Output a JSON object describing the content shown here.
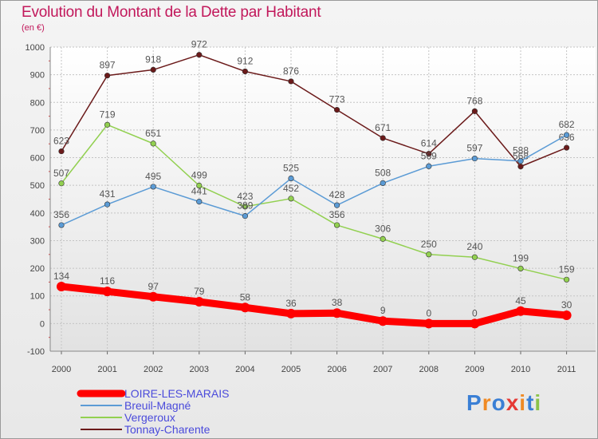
{
  "chart_data": {
    "type": "line",
    "title": "Evolution du Montant de la Dette par Habitant",
    "subtitle": "(en €)",
    "x": [
      "2000",
      "2001",
      "2002",
      "2003",
      "2004",
      "2005",
      "2006",
      "2007",
      "2008",
      "2009",
      "2010",
      "2011"
    ],
    "ylim": [
      -100,
      1000
    ],
    "yticks": [
      "-100",
      "0",
      "100",
      "200",
      "300",
      "400",
      "500",
      "600",
      "700",
      "800",
      "900",
      "1000"
    ],
    "grid": true,
    "legend_position": "bottom-left",
    "series": [
      {
        "name": "LOIRE-LES-MARAIS",
        "color": "#ff0000",
        "values": [
          134,
          116,
          97,
          79,
          58,
          36,
          38,
          9,
          0,
          0,
          45,
          30
        ],
        "labels": [
          "134",
          "116",
          "97",
          "79",
          "58",
          "36",
          "38",
          "9",
          "0",
          "0",
          "45",
          "30"
        ]
      },
      {
        "name": "Breuil-Magné",
        "color": "#5b9bd5",
        "values": [
          356,
          431,
          495,
          441,
          389,
          525,
          428,
          508,
          569,
          597,
          588,
          682
        ],
        "labels": [
          "356",
          "431",
          "495",
          "441",
          "389",
          "525",
          "428",
          "508",
          "569",
          "597",
          "588",
          "682"
        ]
      },
      {
        "name": "Vergeroux",
        "color": "#92d050",
        "values": [
          507,
          719,
          651,
          499,
          423,
          452,
          356,
          306,
          250,
          240,
          199,
          159
        ],
        "labels": [
          "507",
          "719",
          "651",
          "499",
          "423",
          "452",
          "356",
          "306",
          "250",
          "240",
          "199",
          "159"
        ]
      },
      {
        "name": "Tonnay-Charente",
        "color": "#6b1a1a",
        "values": [
          623,
          897,
          918,
          972,
          912,
          876,
          773,
          671,
          614,
          768,
          568,
          636
        ],
        "labels": [
          "623",
          "897",
          "918",
          "972",
          "912",
          "876",
          "773",
          "671",
          "614",
          "768",
          "568",
          "636"
        ]
      }
    ]
  },
  "logo": {
    "letters": [
      "P",
      "r",
      "o",
      "x",
      "i",
      "t",
      "i"
    ],
    "colors": [
      "#3a7fd5",
      "#f08a24",
      "#3a7fd5",
      "#e53935",
      "#f08a24",
      "#3a7fd5",
      "#8bc34a"
    ]
  }
}
